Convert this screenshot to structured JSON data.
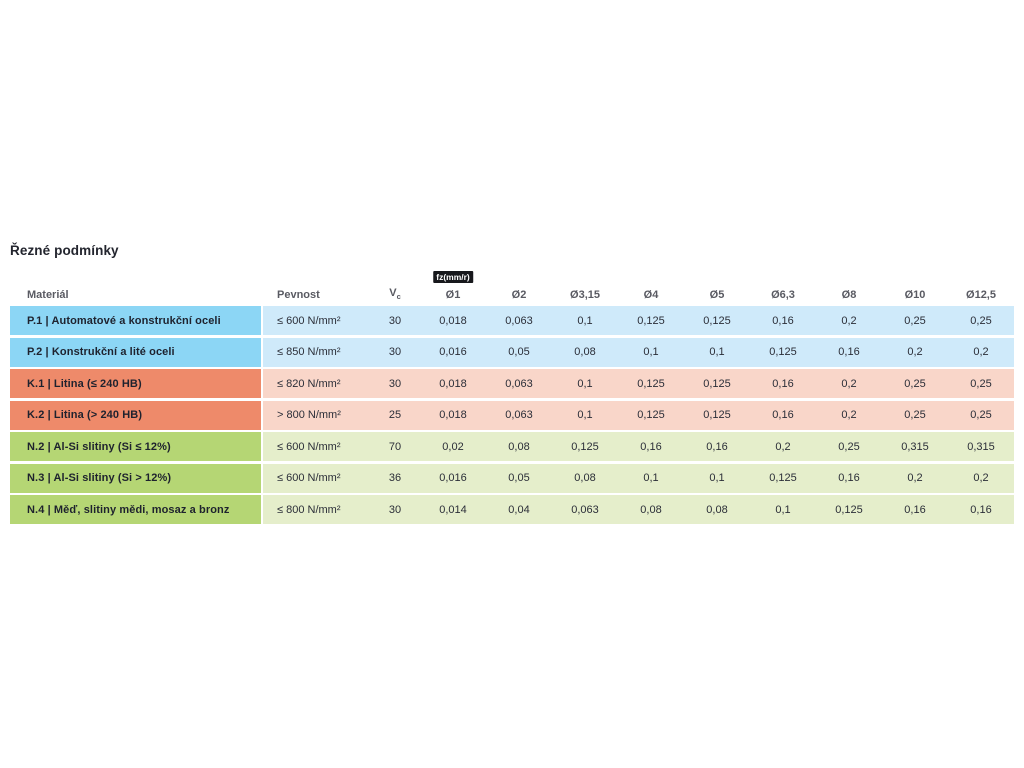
{
  "page": {
    "title": "Řezné podmínky"
  },
  "table": {
    "fz_badge": "fz(mm/r)",
    "headers": {
      "material": "Materiál",
      "strength": "Pevnost",
      "vc_main": "V",
      "vc_sub": "c",
      "diameters": [
        "Ø1",
        "Ø2",
        "Ø3,15",
        "Ø4",
        "Ø5",
        "Ø6,3",
        "Ø8",
        "Ø10",
        "Ø12,5"
      ]
    },
    "rows": [
      {
        "group": "P",
        "label": "P.1 | Automatové a konstrukční oceli",
        "strength": "≤ 600 N/mm²",
        "vc": "30",
        "values": [
          "0,018",
          "0,063",
          "0,1",
          "0,125",
          "0,125",
          "0,16",
          "0,2",
          "0,25",
          "0,25"
        ]
      },
      {
        "group": "P",
        "label": "P.2 | Konstrukční a lité oceli",
        "strength": "≤ 850 N/mm²",
        "vc": "30",
        "values": [
          "0,016",
          "0,05",
          "0,08",
          "0,1",
          "0,1",
          "0,125",
          "0,16",
          "0,2",
          "0,2"
        ]
      },
      {
        "group": "K",
        "label": "K.1 | Litina (≤ 240 HB)",
        "strength": "≤ 820 N/mm²",
        "vc": "30",
        "values": [
          "0,018",
          "0,063",
          "0,1",
          "0,125",
          "0,125",
          "0,16",
          "0,2",
          "0,25",
          "0,25"
        ]
      },
      {
        "group": "K",
        "label": "K.2 | Litina (> 240 HB)",
        "strength": "> 800 N/mm²",
        "vc": "25",
        "values": [
          "0,018",
          "0,063",
          "0,1",
          "0,125",
          "0,125",
          "0,16",
          "0,2",
          "0,25",
          "0,25"
        ]
      },
      {
        "group": "N",
        "label": "N.2 | Al-Si slitiny (Si ≤ 12%)",
        "strength": "≤ 600 N/mm²",
        "vc": "70",
        "values": [
          "0,02",
          "0,08",
          "0,125",
          "0,16",
          "0,16",
          "0,2",
          "0,25",
          "0,315",
          "0,315"
        ]
      },
      {
        "group": "N",
        "label": "N.3 | Al-Si slitiny (Si > 12%)",
        "strength": "≤ 600 N/mm²",
        "vc": "36",
        "values": [
          "0,016",
          "0,05",
          "0,08",
          "0,1",
          "0,1",
          "0,125",
          "0,16",
          "0,2",
          "0,2"
        ]
      },
      {
        "group": "N",
        "label": "N.4 | Měď, slitiny mědi, mosaz a bronz",
        "strength": "≤ 800 N/mm²",
        "vc": "30",
        "values": [
          "0,014",
          "0,04",
          "0,063",
          "0,08",
          "0,08",
          "0,1",
          "0,125",
          "0,16",
          "0,16"
        ]
      }
    ],
    "colors": {
      "p_label": "#8cd6f5",
      "p_row": "#cfeafa",
      "k_label": "#ee8a6a",
      "k_row": "#f9d6c9",
      "n_label": "#b5d674",
      "n_row": "#e5eecb",
      "badge_bg": "#17181c",
      "badge_text": "#ffffff"
    }
  }
}
